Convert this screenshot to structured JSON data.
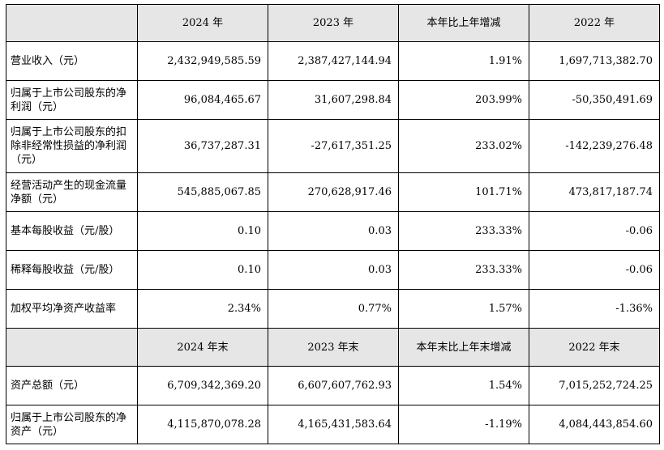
{
  "header1": [
    "2024 年",
    "2023 年",
    "本年比上年增减",
    "2022 年"
  ],
  "rows1": [
    {
      "label": "营业收入（元）",
      "values": [
        "2,432,949,585.59",
        "2,387,427,144.94",
        "1.91%",
        "1,697,713,382.70"
      ]
    },
    {
      "label": "归属于上市公司股东的净利润（元）",
      "values": [
        "96,084,465.67",
        "31,607,298.84",
        "203.99%",
        "-50,350,491.69"
      ]
    },
    {
      "label": "归属于上市公司股东的扣除非经常性损益的净利润（元）",
      "values": [
        "36,737,287.31",
        "-27,617,351.25",
        "233.02%",
        "-142,239,276.48"
      ]
    },
    {
      "label": "经营活动产生的现金流量净额（元）",
      "values": [
        "545,885,067.85",
        "270,628,917.46",
        "101.71%",
        "473,817,187.74"
      ]
    },
    {
      "label": "基本每股收益（元/股）",
      "values": [
        "0.10",
        "0.03",
        "233.33%",
        "-0.06"
      ]
    },
    {
      "label": "稀释每股收益（元/股）",
      "values": [
        "0.10",
        "0.03",
        "233.33%",
        "-0.06"
      ]
    },
    {
      "label": "加权平均净资产收益率",
      "values": [
        "2.34%",
        "0.77%",
        "1.57%",
        "-1.36%"
      ]
    }
  ],
  "header2": [
    "2024 年末",
    "2023 年末",
    "本年末比上年末增减",
    "2022 年末"
  ],
  "rows2": [
    {
      "label": "资产总额（元）",
      "values": [
        "6,709,342,369.20",
        "6,607,607,762.93",
        "1.54%",
        "7,015,252,724.25"
      ]
    },
    {
      "label": "归属于上市公司股东的净资产（元）",
      "values": [
        "4,115,870,078.28",
        "4,165,431,583.64",
        "-1.19%",
        "4,084,443,854.60"
      ]
    }
  ]
}
